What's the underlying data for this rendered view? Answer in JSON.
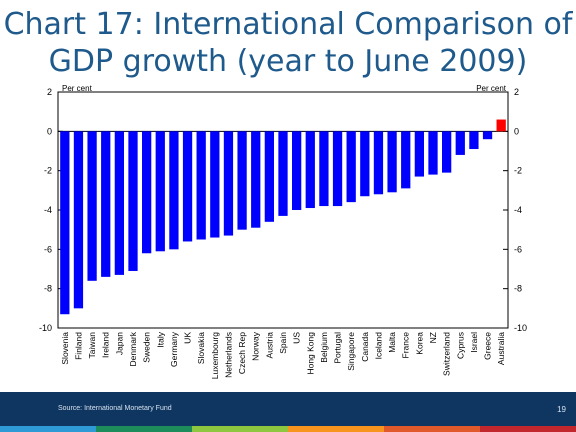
{
  "slide": {
    "title_line1": "Chart 17: International Comparison of",
    "title_line2": "GDP growth (year to June 2009)",
    "source": "Source: International Monetary Fund",
    "page_number": "19",
    "footer_colors": [
      "#2e9bd6",
      "#1b8c5a",
      "#8dc63f",
      "#f7941d",
      "#e0592a",
      "#c1272d"
    ]
  },
  "chart_data": {
    "type": "bar",
    "categories": [
      "Slovenia",
      "Finland",
      "Taiwan",
      "Ireland",
      "Japan",
      "Denmark",
      "Sweden",
      "Italy",
      "Germany",
      "UK",
      "Slovakia",
      "Luxembourg",
      "Netherlands",
      "Czech Rep",
      "Norway",
      "Austria",
      "Spain",
      "US",
      "Hong Kong",
      "Belgium",
      "Portugal",
      "Singapore",
      "Canada",
      "Iceland",
      "Malta",
      "France",
      "Korea",
      "NZ",
      "Switzerland",
      "Cyprus",
      "Israel",
      "Greece",
      "Australia"
    ],
    "values": [
      -9.3,
      -9.0,
      -7.6,
      -7.4,
      -7.3,
      -7.1,
      -6.2,
      -6.1,
      -6.0,
      -5.6,
      -5.5,
      -5.4,
      -5.3,
      -5.0,
      -4.9,
      -4.6,
      -4.3,
      -4.0,
      -3.9,
      -3.8,
      -3.8,
      -3.6,
      -3.3,
      -3.2,
      -3.1,
      -2.9,
      -2.3,
      -2.2,
      -2.1,
      -1.2,
      -0.9,
      -0.4,
      0.6
    ],
    "highlight": "Australia",
    "bar_color": "#0000ff",
    "highlight_color": "#ff0000",
    "ylabel_left": "Per cent",
    "ylabel_right": "Per cent",
    "ylim": [
      -10,
      2
    ],
    "yticks": [
      2,
      0,
      -2,
      -4,
      -6,
      -8,
      -10
    ],
    "grid": false
  }
}
